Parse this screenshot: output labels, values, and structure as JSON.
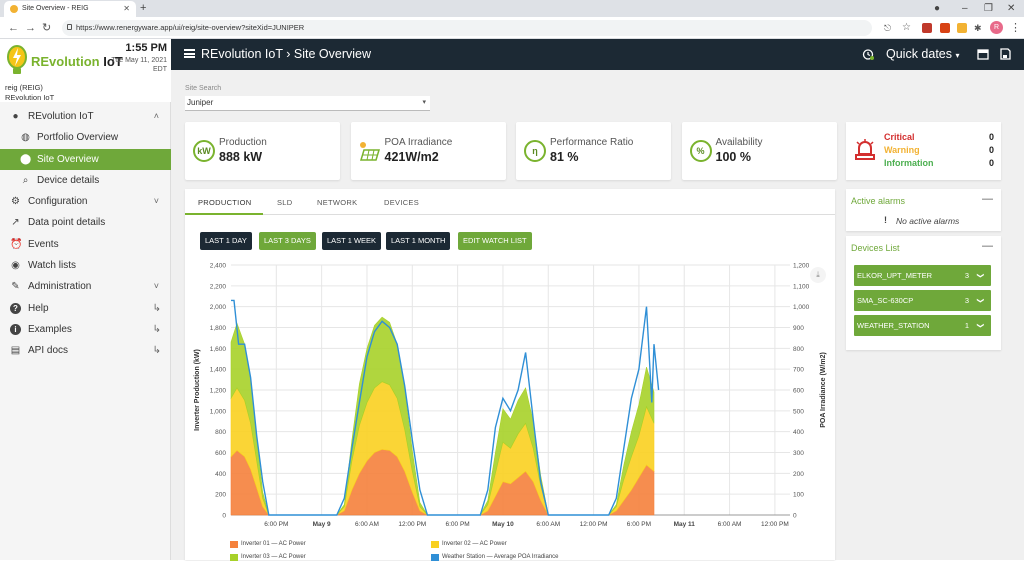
{
  "browser": {
    "tab_title": "Site Overview - REIG",
    "url": "https://www.renergyware.app/ui/reig/site-overview?siteXid=JUNIPER",
    "profile_initial": "R"
  },
  "brand": {
    "logo_prefix": "REvolution",
    "logo_suffix": "IoT",
    "time": "1:55 PM",
    "date": "Tue May 11, 2021",
    "tz": "EDT",
    "user_line1": "reig (REIG)",
    "user_line2": "REvolution IoT"
  },
  "menu": [
    {
      "label": "REvolution IoT",
      "icon": "circle-icon",
      "chev": "˄"
    },
    {
      "label": "Portfolio Overview",
      "icon": "globe-icon",
      "sub": true
    },
    {
      "label": "Site Overview",
      "icon": "location-pin-icon",
      "sub": true,
      "active": true
    },
    {
      "label": "Device details",
      "icon": "search-icon",
      "sub": true
    },
    {
      "label": "Configuration",
      "icon": "gear-icon",
      "chev": "˅"
    },
    {
      "label": "Data point details",
      "icon": "trend-icon"
    },
    {
      "label": "Events",
      "icon": "alarm-clock-icon"
    },
    {
      "label": "Watch lists",
      "icon": "eye-icon"
    },
    {
      "label": "Administration",
      "icon": "wrench-icon",
      "chev": "˅"
    },
    {
      "label": "Help",
      "icon": "help-icon",
      "ext": "↳"
    },
    {
      "label": "Examples",
      "icon": "info-icon",
      "ext": "↳"
    },
    {
      "label": "API docs",
      "icon": "book-icon",
      "ext": "↳"
    }
  ],
  "header": {
    "crumb_root": "REvolution IoT",
    "crumb_sep": "›",
    "crumb_page": "Site Overview",
    "quick_dates": "Quick dates"
  },
  "site": {
    "label": "Site Search",
    "value": "Juniper"
  },
  "kpis": [
    {
      "label": "Production",
      "value": "888 kW",
      "icon": "kw-icon",
      "icon_text": "kW"
    },
    {
      "label": "POA Irradiance",
      "value": "421W/m2",
      "icon": "solar-panel-icon",
      "icon_text": ""
    },
    {
      "label": "Performance Ratio",
      "value": "81 %",
      "icon": "ratio-icon",
      "icon_text": "η"
    },
    {
      "label": "Availability",
      "value": "100 %",
      "icon": "percent-icon",
      "icon_text": "%"
    }
  ],
  "alarm_summary": [
    {
      "label": "Critical",
      "count": "0",
      "color": "#d32f2f"
    },
    {
      "label": "Warning",
      "count": "0",
      "color": "#f2b233"
    },
    {
      "label": "Information",
      "count": "0",
      "color": "#4caf50"
    }
  ],
  "tabs": [
    "PRODUCTION",
    "SLD",
    "NETWORK",
    "DEVICES"
  ],
  "range_buttons": [
    {
      "label": "LAST 1 DAY",
      "style": "dark"
    },
    {
      "label": "LAST 3 DAYS",
      "style": "green"
    },
    {
      "label": "LAST 1 WEEK",
      "style": "dark"
    },
    {
      "label": "LAST 1 MONTH",
      "style": "dark"
    },
    {
      "label": "EDIT WATCH LIST",
      "style": "green"
    }
  ],
  "active_alarms": {
    "title": "Active alarms",
    "empty": "No active alarms"
  },
  "devices": {
    "title": "Devices List",
    "items": [
      {
        "name": "ELKOR_UPT_METER",
        "count": "3"
      },
      {
        "name": "SMA_SC-630CP",
        "count": "3"
      },
      {
        "name": "WEATHER_STATION",
        "count": "1"
      }
    ]
  },
  "chart_data": {
    "type": "area",
    "stacked": true,
    "ylabel": "Inverter Production (kW)",
    "y2label": "POA Irradiance (W/m2)",
    "ylim": [
      0,
      2400
    ],
    "y2lim": [
      0,
      1200
    ],
    "yticks": [
      "0",
      "200",
      "400",
      "600",
      "800",
      "1,000",
      "1,200",
      "1,400",
      "1,600",
      "1,800",
      "2,000",
      "2,200",
      "2,400"
    ],
    "y2ticks": [
      "0",
      "100",
      "200",
      "300",
      "400",
      "500",
      "600",
      "700",
      "800",
      "900",
      "1,000",
      "1,100",
      "1,200"
    ],
    "xticks": [
      {
        "label": "6:00 PM",
        "h": 6
      },
      {
        "label": "May 9",
        "h": 12,
        "bold": true
      },
      {
        "label": "6:00 AM",
        "h": 18
      },
      {
        "label": "12:00 PM",
        "h": 24
      },
      {
        "label": "6:00 PM",
        "h": 30
      },
      {
        "label": "May 10",
        "h": 36,
        "bold": true
      },
      {
        "label": "6:00 AM",
        "h": 42
      },
      {
        "label": "12:00 PM",
        "h": 48
      },
      {
        "label": "6:00 PM",
        "h": 54
      },
      {
        "label": "May 11",
        "h": 60,
        "bold": true
      },
      {
        "label": "6:00 AM",
        "h": 66
      },
      {
        "label": "12:00 PM",
        "h": 72
      }
    ],
    "x_range_hours": [
      0,
      74
    ],
    "series": [
      {
        "name": "Inverter 01 — AC Power",
        "color": "#f5813c",
        "points": [
          [
            0,
            560
          ],
          [
            0.8,
            620
          ],
          [
            1.8,
            560
          ],
          [
            2.6,
            440
          ],
          [
            3.4,
            260
          ],
          [
            4.2,
            80
          ],
          [
            5,
            0
          ],
          [
            14,
            0
          ],
          [
            15,
            40
          ],
          [
            16,
            240
          ],
          [
            17,
            400
          ],
          [
            18,
            520
          ],
          [
            19,
            600
          ],
          [
            20,
            630
          ],
          [
            21,
            620
          ],
          [
            22,
            560
          ],
          [
            23,
            420
          ],
          [
            24,
            220
          ],
          [
            25,
            40
          ],
          [
            26,
            0
          ],
          [
            33,
            0
          ],
          [
            34,
            40
          ],
          [
            35,
            180
          ],
          [
            36,
            320
          ],
          [
            37,
            300
          ],
          [
            38,
            360
          ],
          [
            39,
            420
          ],
          [
            40,
            320
          ],
          [
            41,
            140
          ],
          [
            42,
            0
          ],
          [
            50,
            0
          ],
          [
            51,
            40
          ],
          [
            52,
            140
          ],
          [
            53,
            240
          ],
          [
            54,
            360
          ],
          [
            55,
            480
          ],
          [
            56,
            420
          ]
        ]
      },
      {
        "name": "Inverter 02 — AC Power",
        "color": "#f9d020",
        "points": [
          [
            0,
            560
          ],
          [
            0.8,
            600
          ],
          [
            1.8,
            540
          ],
          [
            2.6,
            440
          ],
          [
            3.4,
            260
          ],
          [
            4.2,
            80
          ],
          [
            5,
            0
          ],
          [
            14,
            0
          ],
          [
            15,
            40
          ],
          [
            16,
            280
          ],
          [
            17,
            460
          ],
          [
            18,
            560
          ],
          [
            19,
            620
          ],
          [
            20,
            650
          ],
          [
            21,
            630
          ],
          [
            22,
            560
          ],
          [
            23,
            400
          ],
          [
            24,
            200
          ],
          [
            25,
            40
          ],
          [
            26,
            0
          ],
          [
            33,
            0
          ],
          [
            34,
            60
          ],
          [
            35,
            220
          ],
          [
            36,
            380
          ],
          [
            37,
            340
          ],
          [
            38,
            420
          ],
          [
            39,
            460
          ],
          [
            40,
            320
          ],
          [
            41,
            140
          ],
          [
            42,
            0
          ],
          [
            50,
            0
          ],
          [
            51,
            40
          ],
          [
            52,
            200
          ],
          [
            53,
            320
          ],
          [
            54,
            400
          ],
          [
            55,
            560
          ],
          [
            56,
            460
          ]
        ]
      },
      {
        "name": "Inverter 03 — AC Power",
        "color": "#a7d129",
        "points": [
          [
            0,
            540
          ],
          [
            0.8,
            620
          ],
          [
            1.8,
            540
          ],
          [
            2.6,
            420
          ],
          [
            3.4,
            220
          ],
          [
            4.2,
            60
          ],
          [
            5,
            0
          ],
          [
            14,
            0
          ],
          [
            15,
            20
          ],
          [
            16,
            200
          ],
          [
            17,
            400
          ],
          [
            18,
            520
          ],
          [
            19,
            600
          ],
          [
            20,
            620
          ],
          [
            21,
            600
          ],
          [
            22,
            520
          ],
          [
            23,
            380
          ],
          [
            24,
            200
          ],
          [
            25,
            40
          ],
          [
            26,
            0
          ],
          [
            33,
            0
          ],
          [
            34,
            40
          ],
          [
            35,
            200
          ],
          [
            36,
            320
          ],
          [
            37,
            280
          ],
          [
            38,
            320
          ],
          [
            39,
            340
          ],
          [
            40,
            260
          ],
          [
            41,
            100
          ],
          [
            42,
            0
          ],
          [
            50,
            0
          ],
          [
            51,
            20
          ],
          [
            52,
            140
          ],
          [
            53,
            240
          ],
          [
            54,
            300
          ],
          [
            55,
            380
          ],
          [
            56,
            300
          ]
        ]
      }
    ],
    "line": {
      "name": "Weather Station — Average POA Irradiance",
      "color": "#2f8fd6",
      "points": [
        [
          0,
          1030
        ],
        [
          0.4,
          1030
        ],
        [
          1,
          820
        ],
        [
          1.8,
          820
        ],
        [
          2.6,
          660
        ],
        [
          3.4,
          380
        ],
        [
          4.2,
          160
        ],
        [
          5,
          0
        ],
        [
          14,
          0
        ],
        [
          15,
          80
        ],
        [
          16,
          320
        ],
        [
          17,
          540
        ],
        [
          18,
          760
        ],
        [
          19,
          880
        ],
        [
          20,
          930
        ],
        [
          21,
          900
        ],
        [
          22,
          820
        ],
        [
          23,
          620
        ],
        [
          24,
          360
        ],
        [
          25,
          120
        ],
        [
          26,
          0
        ],
        [
          33,
          0
        ],
        [
          34,
          120
        ],
        [
          35,
          420
        ],
        [
          36,
          560
        ],
        [
          37,
          500
        ],
        [
          38,
          600
        ],
        [
          39,
          780
        ],
        [
          40,
          460
        ],
        [
          41,
          160
        ],
        [
          42,
          0
        ],
        [
          50,
          0
        ],
        [
          51,
          80
        ],
        [
          52,
          320
        ],
        [
          53,
          560
        ],
        [
          54,
          700
        ],
        [
          55,
          1000
        ],
        [
          55.7,
          540
        ],
        [
          56,
          820
        ],
        [
          56.6,
          600
        ]
      ]
    }
  }
}
